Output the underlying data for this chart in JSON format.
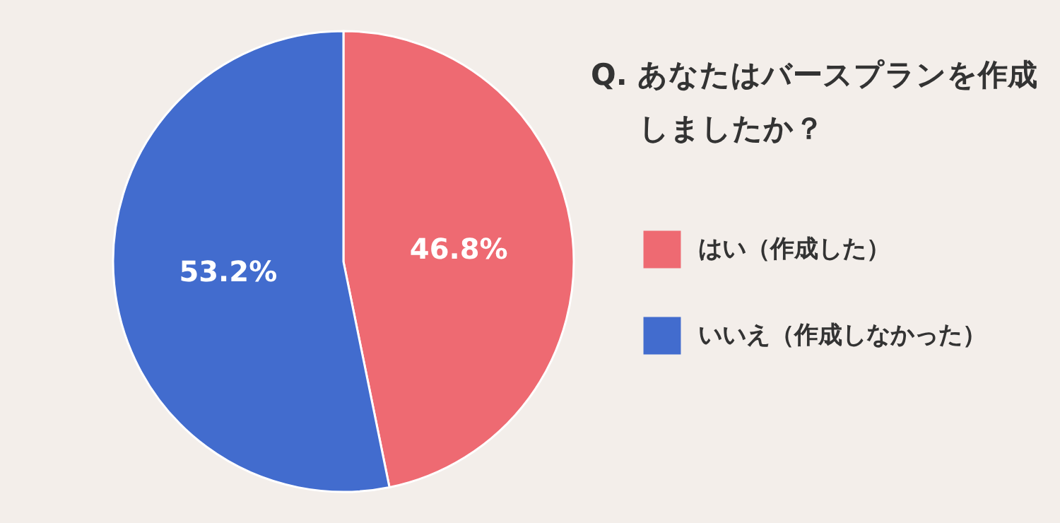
{
  "chart_data": {
    "type": "pie",
    "title": "Q. あなたはバースプランを作成しましたか？",
    "categories": [
      "はい（作成した）",
      "いいえ（作成しなかった）"
    ],
    "values": [
      46.8,
      53.2
    ],
    "colors": [
      "#ee6a72",
      "#426cce"
    ],
    "value_labels": [
      "46.8%",
      "53.2%"
    ],
    "legend": "right"
  }
}
